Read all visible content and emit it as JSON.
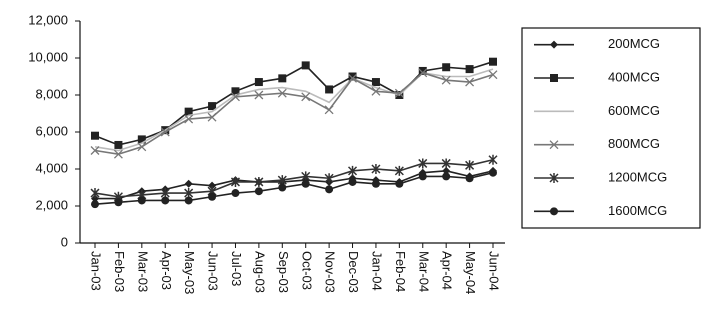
{
  "chart_data": {
    "type": "line",
    "categories": [
      "Jan-03",
      "Feb-03",
      "Mar-03",
      "Apr-03",
      "May-03",
      "Jun-03",
      "Jul-03",
      "Aug-03",
      "Sep-03",
      "Oct-03",
      "Nov-03",
      "Dec-03",
      "Jan-04",
      "Feb-04",
      "Mar-04",
      "Apr-04",
      "May-04",
      "Jun-04"
    ],
    "series": [
      {
        "name": "200MCG",
        "color": "#222222",
        "marker": "diamond",
        "values": [
          2400,
          2400,
          2800,
          2900,
          3200,
          3100,
          3400,
          3300,
          3300,
          3400,
          3300,
          3500,
          3400,
          3300,
          3800,
          3900,
          3600,
          3900
        ]
      },
      {
        "name": "400MCG",
        "color": "#222222",
        "marker": "square",
        "values": [
          5800,
          5300,
          5600,
          6100,
          7100,
          7400,
          8200,
          8700,
          8900,
          9600,
          8300,
          9000,
          8700,
          8000,
          9300,
          9500,
          9400,
          9800
        ]
      },
      {
        "name": "600MCG",
        "color": "#bbbbbb",
        "marker": "none",
        "values": [
          5200,
          5000,
          5400,
          6100,
          6900,
          7100,
          8000,
          8300,
          8400,
          8200,
          7600,
          8900,
          8400,
          8000,
          9200,
          9000,
          9000,
          9400
        ]
      },
      {
        "name": "800MCG",
        "color": "#777777",
        "marker": "x",
        "values": [
          5000,
          4800,
          5200,
          6000,
          6700,
          6800,
          7900,
          8000,
          8100,
          7900,
          7200,
          8900,
          8200,
          8100,
          9200,
          8800,
          8700,
          9100
        ]
      },
      {
        "name": "1200MCG",
        "color": "#333333",
        "marker": "asterisk",
        "values": [
          2700,
          2500,
          2600,
          2700,
          2700,
          2800,
          3300,
          3300,
          3400,
          3600,
          3500,
          3900,
          4000,
          3900,
          4300,
          4300,
          4200,
          4500
        ]
      },
      {
        "name": "1600MCG",
        "color": "#222222",
        "marker": "circle",
        "values": [
          2100,
          2200,
          2300,
          2300,
          2300,
          2500,
          2700,
          2800,
          3000,
          3200,
          2900,
          3300,
          3200,
          3200,
          3600,
          3600,
          3500,
          3800
        ]
      }
    ],
    "ylim": [
      0,
      12000
    ],
    "yticks": [
      0,
      {
        "value": 2000,
        "label": "2,000"
      },
      {
        "value": 4000,
        "label": "4,000"
      },
      {
        "value": 6000,
        "label": "6,000"
      },
      {
        "value": 8000,
        "label": "8,000"
      },
      {
        "value": 10000,
        "label": "10,000"
      },
      {
        "value": 12000,
        "label": "12,000"
      }
    ],
    "legend": "right"
  }
}
